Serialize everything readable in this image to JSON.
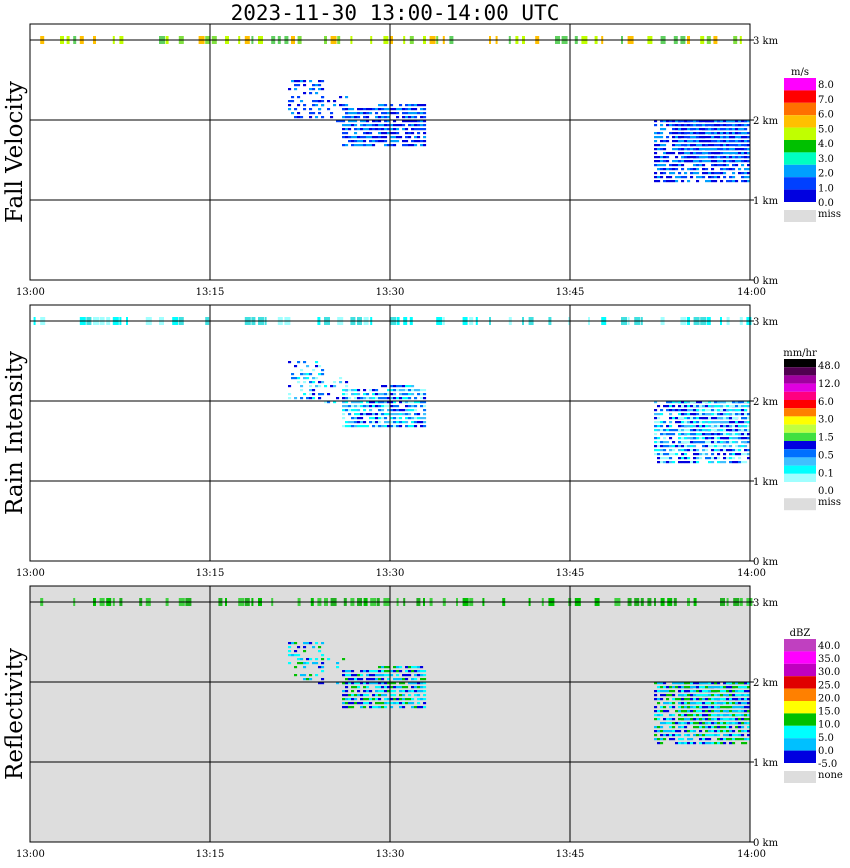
{
  "title": "2023-11-30   13:00-14:00 UTC",
  "chart_data": [
    {
      "type": "heatmap",
      "ylabel": "Fall Velocity",
      "x_ticks": [
        "13:00",
        "13:15",
        "13:30",
        "13:45",
        "14:00"
      ],
      "y_ticks": [
        "0 km",
        "1 km",
        "2 km",
        "3 km"
      ],
      "xlim": [
        "13:00",
        "14:00"
      ],
      "ylim_km": [
        0,
        3.2
      ],
      "grid": true,
      "background": "#ffffff",
      "legend": {
        "unit": "m/s",
        "labels": [
          "8.0",
          "7.0",
          "6.0",
          "5.0",
          "4.0",
          "3.0",
          "2.0",
          "1.0",
          "0.0",
          "miss"
        ],
        "colors": [
          "#ff00ff",
          "#ff0000",
          "#ff7000",
          "#ffc000",
          "#c0ff00",
          "#00c000",
          "#00ffc0",
          "#00a0ff",
          "#0040ff",
          "#0000e0",
          "#dddddd"
        ]
      }
    },
    {
      "type": "heatmap",
      "ylabel": "Rain Intensity",
      "x_ticks": [
        "13:00",
        "13:15",
        "13:30",
        "13:45",
        "14:00"
      ],
      "y_ticks": [
        "0 km",
        "1 km",
        "2 km",
        "3 km"
      ],
      "xlim": [
        "13:00",
        "14:00"
      ],
      "ylim_km": [
        0,
        3.2
      ],
      "grid": true,
      "background": "#ffffff",
      "legend": {
        "unit": "mm/hr",
        "labels": [
          "48.0",
          "12.0",
          "6.0",
          "3.0",
          "1.5",
          "0.5",
          "0.1",
          "0.0",
          "miss"
        ],
        "colors": [
          "#000000",
          "#500050",
          "#a000a0",
          "#e000e0",
          "#ff0080",
          "#ff0000",
          "#ff8000",
          "#ffff00",
          "#c0ff40",
          "#40e040",
          "#0000e0",
          "#0070ff",
          "#40c0ff",
          "#00ffff",
          "#a0ffff",
          "#ffffff",
          "#dddddd"
        ]
      }
    },
    {
      "type": "heatmap",
      "ylabel": "Reflectivity",
      "x_ticks": [
        "13:00",
        "13:15",
        "13:30",
        "13:45",
        "14:00"
      ],
      "y_ticks": [
        "0 km",
        "1 km",
        "2 km",
        "3 km"
      ],
      "xlim": [
        "13:00",
        "14:00"
      ],
      "ylim_km": [
        0,
        3.2
      ],
      "grid": true,
      "background": "#dddddd",
      "legend": {
        "unit": "dBZ",
        "labels": [
          "40.0",
          "35.0",
          "30.0",
          "25.0",
          "20.0",
          "15.0",
          "10.0",
          "5.0",
          "0.0",
          "-5.0",
          "none"
        ],
        "colors": [
          "#c040c0",
          "#ff00ff",
          "#c000c0",
          "#e00000",
          "#ff8000",
          "#ffff00",
          "#00c000",
          "#00ffff",
          "#00c0ff",
          "#0000e0",
          "#dddddd"
        ]
      }
    }
  ]
}
